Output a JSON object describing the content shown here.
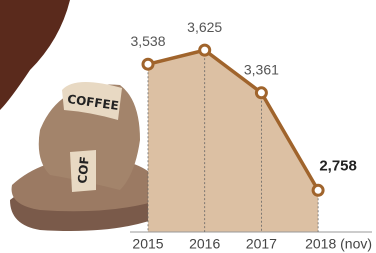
{
  "chart_data": {
    "type": "area",
    "categories": [
      "2015",
      "2016",
      "2017",
      "2018 (nov)"
    ],
    "values": [
      3538,
      3625,
      3361,
      2758
    ],
    "value_labels": [
      "3,538",
      "3,625",
      "3,361",
      "2,758"
    ],
    "color": "#a0642c",
    "fill": "#dcc0a3",
    "ylim": [
      2500,
      3700
    ]
  },
  "illustration": {
    "labels": [
      "COFFEE",
      "COF"
    ]
  }
}
